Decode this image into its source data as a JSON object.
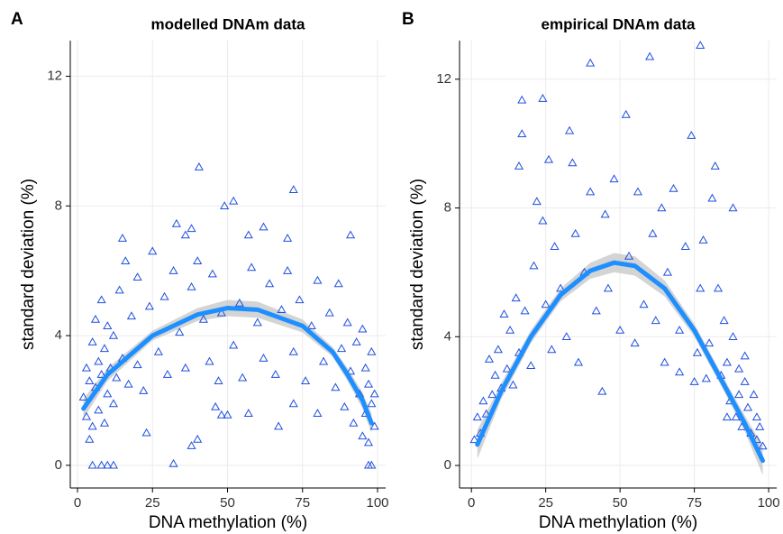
{
  "chart_data": [
    {
      "type": "scatter",
      "panel_label": "A",
      "title": "modelled DNAm data",
      "xlabel": "DNA methylation (%)",
      "ylabel": "standard deviation (%)",
      "xlim": [
        -2.4,
        102.7
      ],
      "ylim": [
        -0.7,
        13.1
      ],
      "xticks": [
        0,
        25,
        50,
        75,
        100
      ],
      "yticks": [
        0,
        4,
        8,
        12
      ],
      "grid": true,
      "series": [
        {
          "color": "#1f4fe0",
          "marker": "triangle",
          "x": [
            40.5,
            52,
            49,
            72,
            33,
            38,
            62,
            91,
            15,
            36,
            57,
            70,
            32,
            5,
            8,
            10,
            12,
            97,
            98,
            38,
            40,
            23,
            48,
            50,
            46,
            57,
            67,
            80,
            72,
            2,
            3,
            3,
            4,
            4,
            5,
            5,
            6,
            6,
            7,
            7,
            8,
            8,
            9,
            9,
            10,
            10,
            11,
            12,
            12,
            13,
            14,
            15,
            16,
            17,
            18,
            20,
            20,
            22,
            24,
            25,
            27,
            29,
            30,
            32,
            34,
            36,
            38,
            40,
            42,
            44,
            45,
            47,
            48,
            52,
            54,
            55,
            58,
            60,
            62,
            64,
            66,
            68,
            70,
            72,
            74,
            76,
            78,
            80,
            82,
            84,
            86,
            87,
            88,
            89,
            90,
            91,
            92,
            93,
            94,
            95,
            95,
            96,
            96,
            97,
            97,
            98,
            98,
            99,
            99
          ],
          "values": [
            9.2,
            8.15,
            8.0,
            8.5,
            7.45,
            7.3,
            7.35,
            7.1,
            7.0,
            7.1,
            7.1,
            7.0,
            0.05,
            0,
            0,
            0,
            0,
            0,
            0,
            0.6,
            0.8,
            1.0,
            1.55,
            1.55,
            1.8,
            1.6,
            1.2,
            1.6,
            1.9,
            2.1,
            1.5,
            3.0,
            2.6,
            0.8,
            3.8,
            1.2,
            2.4,
            4.5,
            3.2,
            1.7,
            2.8,
            5.1,
            3.6,
            1.3,
            2.2,
            4.3,
            3.0,
            1.9,
            4.0,
            2.7,
            5.4,
            3.3,
            6.3,
            2.5,
            4.6,
            3.1,
            5.8,
            2.3,
            4.9,
            6.6,
            3.5,
            5.2,
            2.8,
            6.0,
            4.1,
            3.0,
            5.5,
            6.3,
            4.5,
            3.2,
            5.9,
            2.6,
            4.7,
            3.7,
            5.0,
            2.7,
            6.1,
            4.4,
            3.3,
            5.6,
            2.8,
            4.8,
            6.0,
            3.5,
            5.1,
            2.6,
            4.3,
            5.7,
            3.2,
            4.7,
            2.4,
            5.6,
            3.6,
            1.8,
            4.4,
            2.9,
            1.3,
            3.8,
            2.2,
            0.9,
            4.2,
            3.0,
            1.6,
            2.5,
            0.7,
            1.9,
            3.5,
            1.2,
            2.2
          ]
        }
      ],
      "fit": {
        "color": "#1e8fff",
        "band_color": "#c9c9c9",
        "x": [
          2,
          10,
          25,
          40,
          50,
          60,
          75,
          85,
          90,
          95,
          98
        ],
        "values": [
          1.75,
          2.8,
          4.0,
          4.65,
          4.85,
          4.8,
          4.3,
          3.5,
          2.8,
          2.0,
          1.3
        ],
        "lower": [
          1.45,
          2.6,
          3.85,
          4.45,
          4.6,
          4.55,
          4.1,
          3.35,
          2.6,
          1.75,
          1.0
        ],
        "upper": [
          2.05,
          3.0,
          4.15,
          4.85,
          5.1,
          5.05,
          4.5,
          3.65,
          3.0,
          2.25,
          1.6
        ]
      }
    },
    {
      "type": "scatter",
      "panel_label": "B",
      "title": "empirical DNAm data",
      "xlabel": "DNA methylation (%)",
      "ylabel": "standard deviation (%)",
      "xlim": [
        -4,
        102.7
      ],
      "ylim": [
        -0.7,
        13.2
      ],
      "xticks": [
        0,
        25,
        50,
        75,
        100
      ],
      "yticks": [
        0,
        4,
        8,
        12
      ],
      "grid": true,
      "series": [
        {
          "color": "#1f4fe0",
          "marker": "triangle",
          "x": [
            1,
            2,
            3,
            4,
            5,
            6,
            7,
            8,
            9,
            10,
            11,
            12,
            13,
            14,
            15,
            16,
            17,
            16,
            17,
            18,
            20,
            21,
            22,
            24,
            24,
            25,
            26,
            27,
            28,
            30,
            32,
            33,
            34,
            35,
            36,
            38,
            40,
            40,
            42,
            44,
            45,
            46,
            48,
            50,
            52,
            53,
            55,
            56,
            58,
            60,
            61,
            62,
            64,
            65,
            66,
            68,
            70,
            72,
            74,
            75,
            77,
            77,
            78,
            80,
            82,
            81,
            83,
            84,
            85,
            86,
            87,
            88,
            88,
            89,
            90,
            90,
            91,
            92,
            92,
            93,
            94,
            95,
            96,
            96,
            97,
            98,
            79,
            76,
            70,
            86
          ],
          "values": [
            0.8,
            1.5,
            1.0,
            2.0,
            1.6,
            3.3,
            2.2,
            2.8,
            3.6,
            2.4,
            4.7,
            3.0,
            4.2,
            2.5,
            5.2,
            3.5,
            11.35,
            9.3,
            10.3,
            4.8,
            3.1,
            6.2,
            8.2,
            11.4,
            7.6,
            5.0,
            9.5,
            3.6,
            6.8,
            5.5,
            4.0,
            10.4,
            9.4,
            7.2,
            3.2,
            6.0,
            12.5,
            8.5,
            4.8,
            2.3,
            7.8,
            5.5,
            8.9,
            4.2,
            10.9,
            6.5,
            3.8,
            8.5,
            5.0,
            12.7,
            7.2,
            4.5,
            8.0,
            3.2,
            6.0,
            8.6,
            4.2,
            6.8,
            10.25,
            2.6,
            13.05,
            5.5,
            7.0,
            3.8,
            9.3,
            8.3,
            5.5,
            2.8,
            4.5,
            3.2,
            2.0,
            8.0,
            4.0,
            1.5,
            3.0,
            2.2,
            1.2,
            2.6,
            3.4,
            1.8,
            1.0,
            2.2,
            1.5,
            0.8,
            1.2,
            0.6,
            2.7,
            3.5,
            2.9,
            1.5
          ]
        }
      ],
      "fit": {
        "color": "#1e8fff",
        "band_color": "#c9c9c9",
        "x": [
          2,
          10,
          20,
          30,
          40,
          48,
          55,
          65,
          75,
          85,
          92,
          98
        ],
        "values": [
          0.65,
          2.3,
          4.0,
          5.3,
          6.05,
          6.3,
          6.2,
          5.5,
          4.2,
          2.5,
          1.3,
          0.15
        ],
        "lower": [
          0.2,
          2.05,
          3.8,
          5.1,
          5.8,
          6.0,
          5.9,
          5.25,
          4.0,
          2.3,
          1.05,
          -0.3
        ],
        "upper": [
          1.1,
          2.55,
          4.2,
          5.5,
          6.3,
          6.6,
          6.5,
          5.75,
          4.4,
          2.7,
          1.55,
          0.6
        ]
      }
    }
  ]
}
